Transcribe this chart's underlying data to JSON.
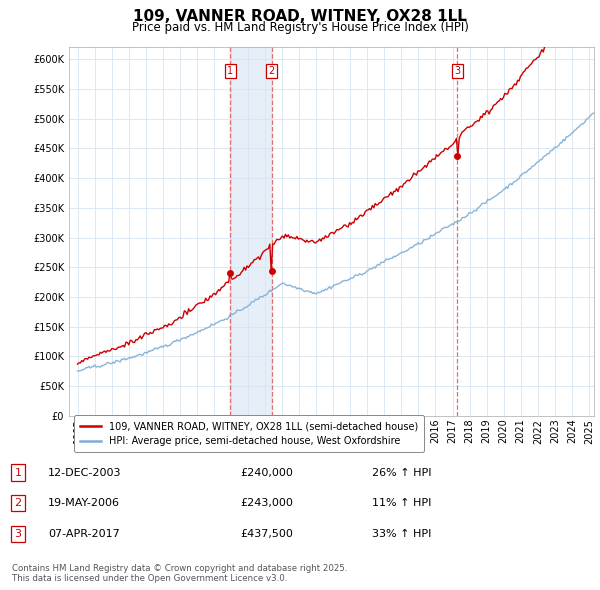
{
  "title": "109, VANNER ROAD, WITNEY, OX28 1LL",
  "subtitle": "Price paid vs. HM Land Registry's House Price Index (HPI)",
  "legend_line1": "109, VANNER ROAD, WITNEY, OX28 1LL (semi-detached house)",
  "legend_line2": "HPI: Average price, semi-detached house, West Oxfordshire",
  "sale_color": "#cc0000",
  "hpi_color": "#7dadd4",
  "hpi_fill_color": "#dce9f5",
  "vline_color": "#e06060",
  "ylim": [
    0,
    620000
  ],
  "ytick_step": 50000,
  "sale_offsets": [
    8.95,
    11.38,
    22.27
  ],
  "sale_prices": [
    240000,
    243000,
    437500
  ],
  "sale_labels": [
    "1",
    "2",
    "3"
  ],
  "table_rows": [
    {
      "num": "1",
      "date": "12-DEC-2003",
      "price": "£240,000",
      "hpi": "26% ↑ HPI"
    },
    {
      "num": "2",
      "date": "19-MAY-2006",
      "price": "£243,000",
      "hpi": "11% ↑ HPI"
    },
    {
      "num": "3",
      "date": "07-APR-2017",
      "price": "£437,500",
      "hpi": "33% ↑ HPI"
    }
  ],
  "footnote": "Contains HM Land Registry data © Crown copyright and database right 2025.\nThis data is licensed under the Open Government Licence v3.0.",
  "xstart_year": 1995,
  "xend_year": 2025
}
